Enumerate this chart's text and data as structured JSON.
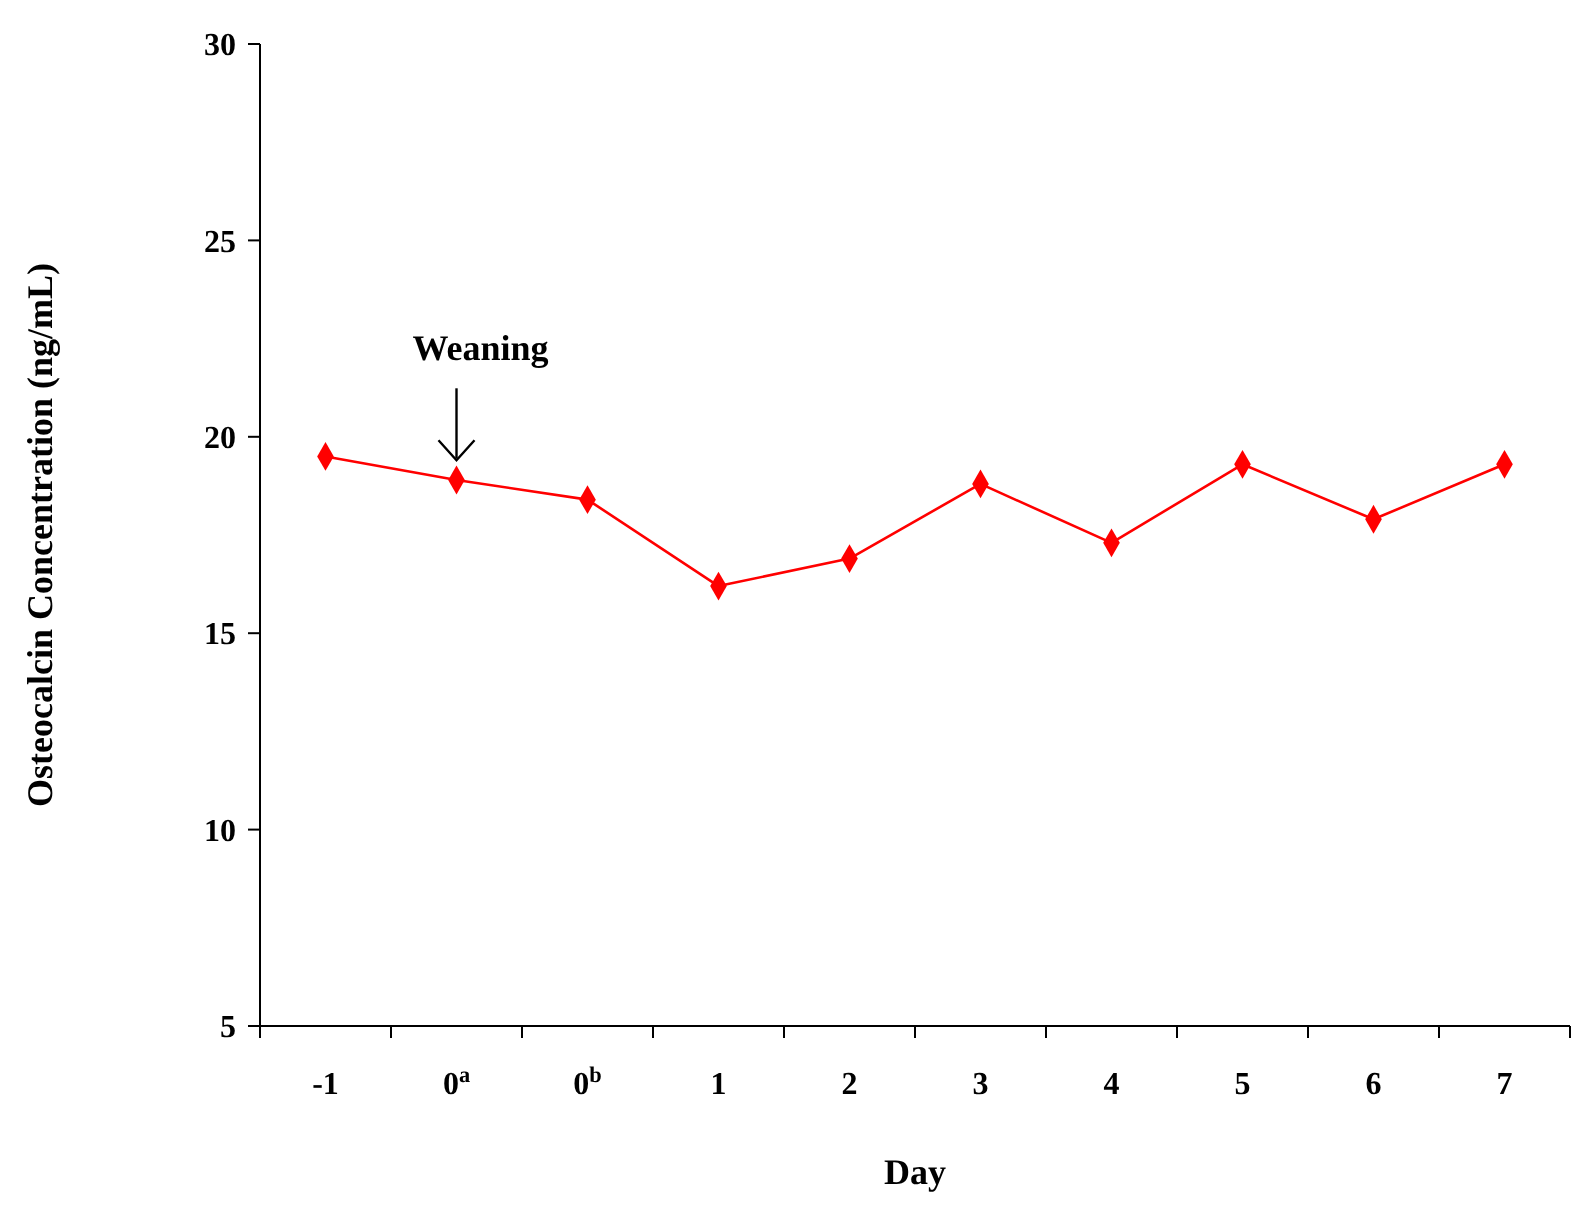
{
  "chart_data": {
    "type": "line",
    "xlabel": "Day",
    "ylabel": "Osteocalcin Concentration (ng/mL)",
    "categories": [
      "-1",
      "0$^{a}$",
      "0$^{b}$",
      "1",
      "2",
      "3",
      "4",
      "5",
      "6",
      "7"
    ],
    "series": [
      {
        "color": "#ff0000",
        "values": [
          19.5,
          18.9,
          18.4,
          16.2,
          16.9,
          18.8,
          17.3,
          19.3,
          17.9,
          19.3
        ]
      }
    ],
    "ylim": [
      5,
      30
    ],
    "yticks": [
      5,
      10,
      15,
      20,
      25,
      30
    ],
    "grid": false,
    "marker": "diamond",
    "line_style": "solid",
    "annotations": [
      {
        "text": "Weaning",
        "x": "0$^{a}$",
        "y": 19.3
      }
    ]
  }
}
